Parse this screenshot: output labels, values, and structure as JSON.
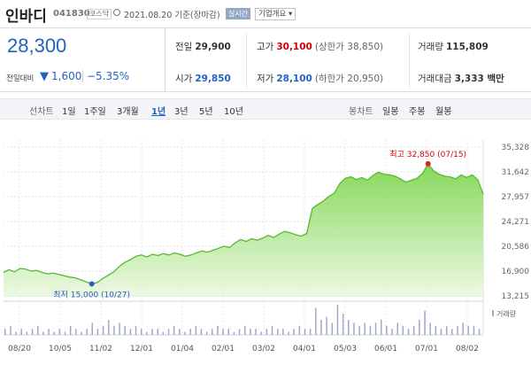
{
  "header": {
    "name": "인바디",
    "code": "041830",
    "market": "코스닥",
    "date_text": "2021.08.20 기준(장마감)",
    "realtime_label": "실시간",
    "company_info_label": "기업개요 ▾"
  },
  "quote": {
    "price": "28,300",
    "change_label": "전일대비",
    "change_arrow": "▼",
    "change_value": "1,600",
    "change_pct": "−5.35%"
  },
  "stats": {
    "prev_label": "전일",
    "prev_value": "29,900",
    "high_label": "고가",
    "high_value": "30,100",
    "upper_limit": "(상한가 38,850)",
    "volume_label": "거래량",
    "volume_value": "115,809",
    "open_label": "시가",
    "open_value": "29,850",
    "low_label": "저가",
    "low_value": "28,100",
    "lower_limit": "(하한가 20,950)",
    "amount_label": "거래대금",
    "amount_value": "3,333 백만"
  },
  "toolbar": {
    "line_chart_label": "선차트",
    "periods": [
      "1일",
      "1주일",
      "3개월",
      "1년",
      "3년",
      "5년",
      "10년"
    ],
    "selected_period": "1년",
    "candle_label": "봉차트",
    "candle_periods": [
      "일봉",
      "주봉",
      "월봉"
    ]
  },
  "chart_data": {
    "type": "area",
    "y_ticks": [
      "35,328",
      "31,642",
      "27,957",
      "24,271",
      "20,586",
      "16,900",
      "13,215"
    ],
    "ylim": [
      13215,
      35328
    ],
    "x_ticks": [
      "08/20",
      "10/05",
      "11/02",
      "12/01",
      "01/04",
      "02/01",
      "03/02",
      "04/01",
      "05/03",
      "06/01",
      "07/01",
      "08/02"
    ],
    "max_annotation": "최고 32,850 (07/15)",
    "min_annotation": "최저 15,000 (10/27)",
    "volume_label": "거래량",
    "series": [
      {
        "values": [
          16700,
          17100,
          16800,
          17300,
          17200,
          16900,
          17000,
          16700,
          16500,
          16600,
          16400,
          16200,
          16000,
          15900,
          15600,
          15300,
          15000,
          15200,
          15800,
          16300,
          16800,
          17600,
          18200,
          18600,
          19100,
          19300,
          19000,
          19400,
          19200,
          19500,
          19300,
          19600,
          19400,
          19100,
          19300,
          19600,
          19900,
          19700,
          20000,
          20300,
          20600,
          20400,
          21100,
          21600,
          21300,
          21700,
          21500,
          21800,
          22200,
          21900,
          22400,
          22800,
          22600,
          22300,
          22100,
          22500,
          26200,
          26800,
          27300,
          28000,
          28500,
          29900,
          30700,
          30900,
          30500,
          30800,
          30400,
          31100,
          31600,
          31300,
          31200,
          31000,
          30600,
          30100,
          30400,
          30700,
          31400,
          32850,
          31800,
          31300,
          31000,
          30900,
          30600,
          31200,
          30800,
          31200,
          30500,
          28300
        ]
      }
    ],
    "volume": [
      2,
      3,
      1,
      2,
      1,
      2,
      3,
      1,
      2,
      1,
      2,
      1,
      3,
      2,
      1,
      2,
      4,
      2,
      3,
      5,
      3,
      4,
      3,
      2,
      3,
      2,
      1,
      2,
      2,
      1,
      2,
      3,
      2,
      1,
      2,
      3,
      2,
      1,
      2,
      3,
      2,
      2,
      1,
      2,
      3,
      2,
      2,
      1,
      2,
      3,
      2,
      2,
      1,
      2,
      3,
      2,
      2,
      9,
      5,
      6,
      4,
      10,
      7,
      5,
      4,
      3,
      4,
      3,
      4,
      5,
      3,
      2,
      4,
      3,
      2,
      3,
      5,
      8,
      4,
      3,
      2,
      3,
      2,
      3,
      4,
      3,
      3,
      2
    ],
    "grid": true
  }
}
